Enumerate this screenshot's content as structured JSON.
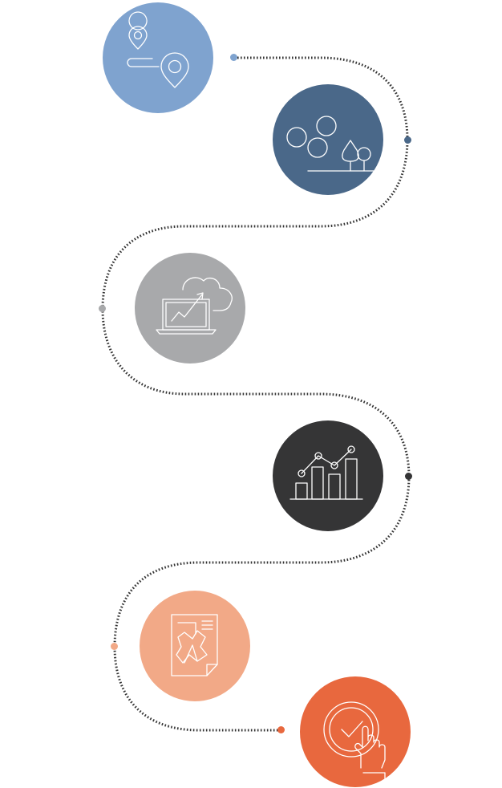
{
  "path": {
    "color": "#333333"
  },
  "steps": [
    {
      "id": "step-1",
      "icon": "location-route-icon",
      "color": "#7fa3cf"
    },
    {
      "id": "step-2",
      "icon": "molecule-tree-icon",
      "color": "#4a6889"
    },
    {
      "id": "step-3",
      "icon": "cloud-laptop-growth-icon",
      "color": "#a8a9ab"
    },
    {
      "id": "step-4",
      "icon": "bar-line-chart-icon",
      "color": "#353536"
    },
    {
      "id": "step-5",
      "icon": "document-puzzle-icon",
      "color": "#f2a987"
    },
    {
      "id": "step-6",
      "icon": "click-check-icon",
      "color": "#e8683e"
    }
  ]
}
